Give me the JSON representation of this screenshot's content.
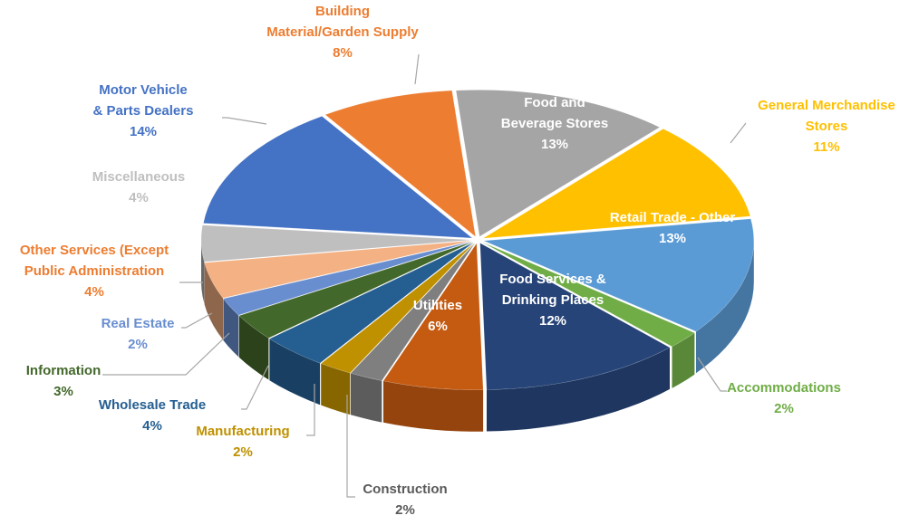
{
  "chart_data": {
    "type": "pie",
    "style": "3d-exploded-perspective",
    "title": "",
    "slices": [
      {
        "name": "Food and Beverage Stores",
        "label_lines": [
          "Food and",
          "Beverage Stores"
        ],
        "value": 13,
        "value_label": "13%",
        "color": "#a5a5a5",
        "label_color": "#ffffff",
        "label_inside": true
      },
      {
        "name": "General Merchandise Stores",
        "label_lines": [
          "General Merchandise",
          "Stores"
        ],
        "value": 11,
        "value_label": "11%",
        "color": "#ffc000",
        "label_color": "#ffc000",
        "label_inside": false
      },
      {
        "name": "Retail Trade - Other",
        "label_lines": [
          "Retail Trade - Other"
        ],
        "value": 13,
        "value_label": "13%",
        "color": "#5b9bd5",
        "label_color": "#ffffff",
        "label_inside": true
      },
      {
        "name": "Accommodations",
        "label_lines": [
          "Accommodations"
        ],
        "value": 2,
        "value_label": "2%",
        "color": "#70ad47",
        "label_color": "#70ad47",
        "label_inside": false
      },
      {
        "name": "Food Services & Drinking Places",
        "label_lines": [
          "Food Services &",
          "Drinking Places"
        ],
        "value": 12,
        "value_label": "12%",
        "color": "#264478",
        "label_color": "#ffffff",
        "label_inside": true
      },
      {
        "name": "Utilities",
        "label_lines": [
          "Utilities"
        ],
        "value": 6,
        "value_label": "6%",
        "color": "#c55a11",
        "label_color": "#ffffff",
        "label_inside": true
      },
      {
        "name": "Construction",
        "label_lines": [
          "Construction"
        ],
        "value": 2,
        "value_label": "2%",
        "color": "#7f7f7f",
        "label_color": "#595959",
        "label_inside": false
      },
      {
        "name": "Manufacturing",
        "label_lines": [
          "Manufacturing"
        ],
        "value": 2,
        "value_label": "2%",
        "color": "#bf9000",
        "label_color": "#bf9000",
        "label_inside": false
      },
      {
        "name": "Wholesale Trade",
        "label_lines": [
          "Wholesale Trade"
        ],
        "value": 4,
        "value_label": "4%",
        "color": "#255e91",
        "label_color": "#255e91",
        "label_inside": false
      },
      {
        "name": "Information",
        "label_lines": [
          "Information"
        ],
        "value": 3,
        "value_label": "3%",
        "color": "#43682b",
        "label_color": "#43682b",
        "label_inside": false
      },
      {
        "name": "Real Estate",
        "label_lines": [
          "Real Estate"
        ],
        "value": 2,
        "value_label": "2%",
        "color": "#698ed0",
        "label_color": "#698ed0",
        "label_inside": false
      },
      {
        "name": "Other Services (Except Public Administration",
        "label_lines": [
          "Other Services (Except",
          "Public Administration"
        ],
        "value": 4,
        "value_label": "4%",
        "color": "#f4b183",
        "label_color": "#ed7d31",
        "label_inside": false
      },
      {
        "name": "Miscellaneous",
        "label_lines": [
          "Miscellaneous"
        ],
        "value": 4,
        "value_label": "4%",
        "color": "#bfbfbf",
        "label_color": "#bfbfbf",
        "label_inside": false
      },
      {
        "name": "Motor Vehicle & Parts Dealers",
        "label_lines": [
          "Motor Vehicle",
          "& Parts Dealers"
        ],
        "value": 14,
        "value_label": "14%",
        "color": "#4472c4",
        "label_color": "#4472c4",
        "label_inside": false
      },
      {
        "name": "Building Material/Garden Supply",
        "label_lines": [
          "Building",
          "Material/Garden Supply"
        ],
        "value": 8,
        "value_label": "8%",
        "color": "#ed7d31",
        "label_color": "#ed7d31",
        "label_inside": false
      }
    ],
    "legend": "none",
    "leader_line_color": "#a6a6a6"
  }
}
